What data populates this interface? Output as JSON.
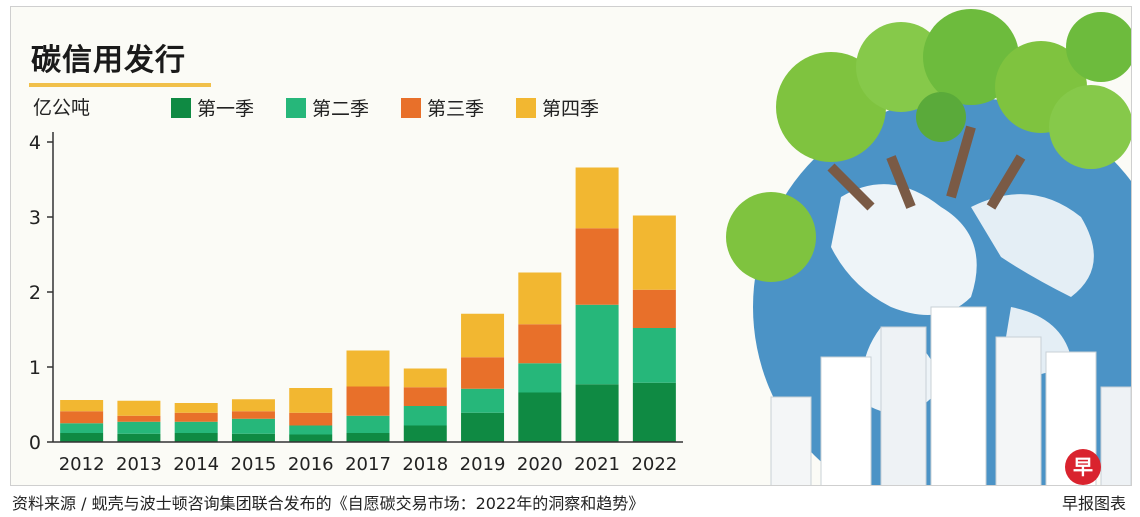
{
  "title": "碳信用发行",
  "unit_label": "亿公吨",
  "footer_source": "资料来源 / 蚬壳与波士顿咨询集团联合发布的《自愿碳交易市场：2022年的洞察和趋势》",
  "footer_credit": "早报图表",
  "logo_char": "早",
  "colors": {
    "q1": "#0f8a43",
    "q2": "#26b77a",
    "q3": "#e8702a",
    "q4": "#f2b731",
    "axis": "#333333",
    "accent": "#f1c04a"
  },
  "chart_data": {
    "type": "bar",
    "stacked": true,
    "categories": [
      "2012",
      "2013",
      "2014",
      "2015",
      "2016",
      "2017",
      "2018",
      "2019",
      "2020",
      "2021",
      "2022"
    ],
    "series": [
      {
        "name": "第一季",
        "values": [
          0.12,
          0.11,
          0.12,
          0.11,
          0.1,
          0.12,
          0.22,
          0.39,
          0.66,
          0.77,
          0.79
        ]
      },
      {
        "name": "第二季",
        "values": [
          0.13,
          0.16,
          0.15,
          0.2,
          0.12,
          0.23,
          0.26,
          0.32,
          0.39,
          1.06,
          0.73
        ]
      },
      {
        "name": "第三季",
        "values": [
          0.16,
          0.08,
          0.12,
          0.1,
          0.17,
          0.39,
          0.25,
          0.42,
          0.52,
          1.02,
          0.51
        ]
      },
      {
        "name": "第四季",
        "values": [
          0.15,
          0.2,
          0.13,
          0.16,
          0.33,
          0.48,
          0.25,
          0.58,
          0.69,
          0.81,
          0.99
        ]
      }
    ],
    "ylim": [
      0,
      4
    ],
    "yticks": [
      0,
      1,
      2,
      3,
      4
    ],
    "grid": false,
    "legend_position": "top"
  }
}
